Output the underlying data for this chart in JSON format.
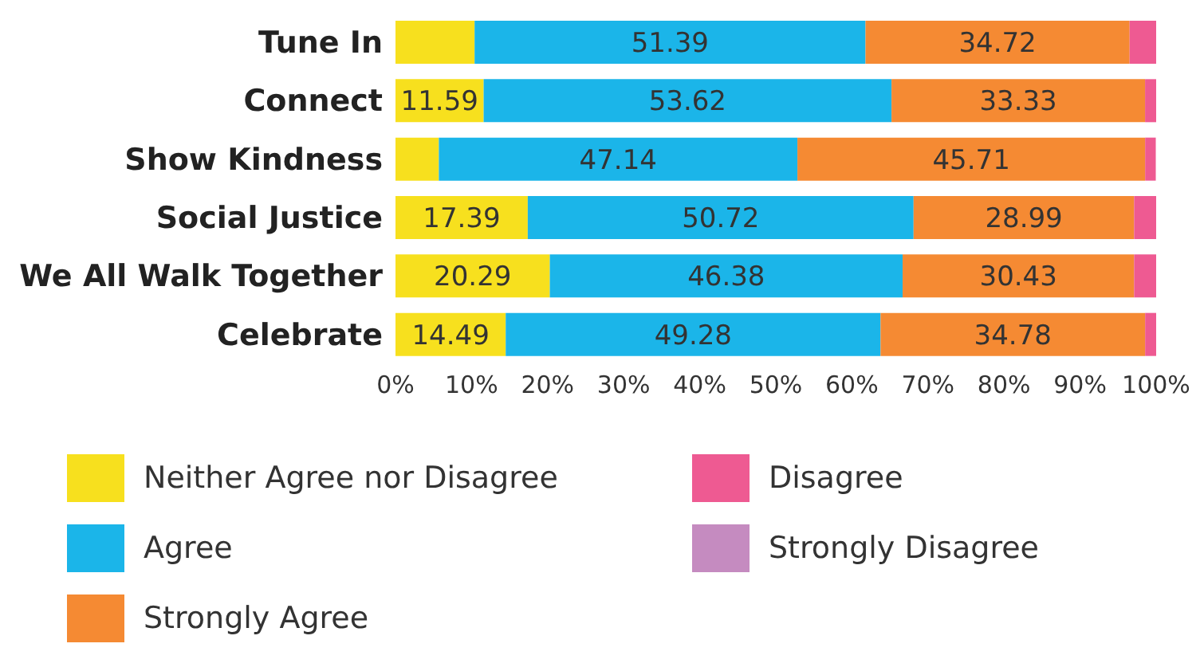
{
  "chart_data": {
    "type": "bar",
    "orientation": "horizontal",
    "stacked": true,
    "categories": [
      "Tune In",
      "Connect",
      "Show Kindness",
      "Social Justice",
      "We All Walk Together",
      "Celebrate"
    ],
    "series": [
      {
        "name": "Neither Agree nor Disagree",
        "color": "#f7e01e",
        "values": [
          10.4,
          11.59,
          5.7,
          17.39,
          20.29,
          14.49
        ],
        "value_labels": [
          null,
          "11.59",
          null,
          "17.39",
          "20.29",
          "14.49"
        ]
      },
      {
        "name": "Agree",
        "color": "#1bb5e9",
        "values": [
          51.39,
          53.62,
          47.14,
          50.72,
          46.38,
          49.28
        ],
        "value_labels": [
          "51.39",
          "53.62",
          "47.14",
          "50.72",
          "46.38",
          "49.28"
        ]
      },
      {
        "name": "Strongly Agree",
        "color": "#f58a33",
        "values": [
          34.72,
          33.33,
          45.71,
          28.99,
          30.43,
          34.78
        ],
        "value_labels": [
          "34.72",
          "33.33",
          "45.71",
          "28.99",
          "30.43",
          "34.78"
        ]
      },
      {
        "name": "Disagree",
        "color": "#ee5a92",
        "values": [
          3.5,
          1.5,
          1.4,
          2.9,
          2.9,
          1.5
        ],
        "value_labels": [
          null,
          null,
          null,
          null,
          null,
          null
        ]
      },
      {
        "name": "Strongly Disagree",
        "color": "#c58bc0",
        "values": [
          0,
          0,
          0,
          0,
          0,
          0
        ],
        "value_labels": [
          null,
          null,
          null,
          null,
          null,
          null
        ]
      }
    ],
    "xlim": [
      0,
      100
    ],
    "xticks": [
      {
        "value": 0,
        "label": "0%"
      },
      {
        "value": 10,
        "label": "10%"
      },
      {
        "value": 20,
        "label": "20%"
      },
      {
        "value": 30,
        "label": "30%"
      },
      {
        "value": 40,
        "label": "40%"
      },
      {
        "value": 50,
        "label": "50%"
      },
      {
        "value": 60,
        "label": "60%"
      },
      {
        "value": 70,
        "label": "70%"
      },
      {
        "value": 80,
        "label": "80%"
      },
      {
        "value": 90,
        "label": "90%"
      },
      {
        "value": 100,
        "label": "100%"
      }
    ],
    "grid": false,
    "legend": "bottom"
  }
}
